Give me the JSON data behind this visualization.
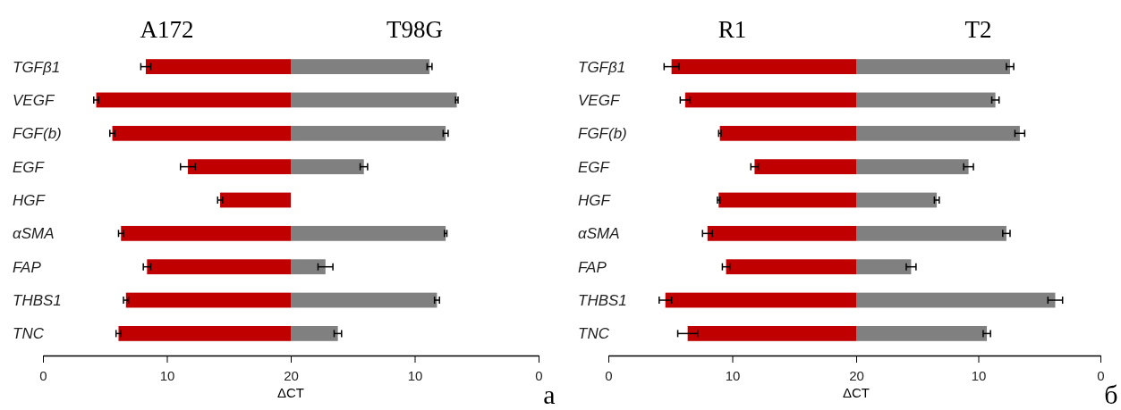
{
  "chart_data": [
    {
      "type": "bar",
      "orientation": "horizontal",
      "title": "A172",
      "xlabel": "ΔCT",
      "categories": [
        "TGFβ1",
        "VEGF",
        "FGF(b)",
        "EGF",
        "HGF",
        "αSMA",
        "FAP",
        "THBS1",
        "TNC"
      ],
      "color": "#c00000",
      "base": [
        20,
        20,
        20,
        20,
        20,
        20,
        20,
        20,
        20
      ],
      "values": [
        -11.7,
        -15.7,
        -14.4,
        -8.3,
        -5.7,
        -13.7,
        -11.6,
        -13.3,
        -13.9
      ],
      "errors": [
        0.4,
        0.2,
        0.2,
        0.6,
        0.2,
        0.2,
        0.3,
        0.2,
        0.2
      ],
      "xlim": [
        0,
        20
      ],
      "xticks": [
        0,
        10,
        20
      ]
    },
    {
      "type": "bar",
      "orientation": "horizontal",
      "title": "T98G",
      "categories": [
        null,
        null,
        null,
        null,
        null,
        null,
        null,
        null,
        null
      ],
      "color": "#808080",
      "base": [
        20,
        20,
        20,
        20,
        null,
        20,
        20,
        20,
        20
      ],
      "values": [
        -11.2,
        -13.4,
        -12.5,
        -5.9,
        null,
        -12.5,
        -2.8,
        -11.8,
        -3.8
      ],
      "errors": [
        0.2,
        0.1,
        0.2,
        0.3,
        null,
        0.1,
        0.6,
        0.2,
        0.3
      ],
      "xlim": [
        20,
        0
      ],
      "xticks": [
        {
          "value": 20,
          "label": null
        },
        10,
        0
      ],
      "tick_labels": "x",
      "annotations": [
        "а"
      ]
    },
    {
      "type": "bar",
      "orientation": "horizontal",
      "title": "R1",
      "xlabel": "ΔCT",
      "categories": [
        "TGFβ1",
        "VEGF",
        "FGF(b)",
        "EGF",
        "HGF",
        "αSMA",
        "FAP",
        "THBS1",
        "TNC"
      ],
      "color": "#c00000",
      "base": [
        20,
        20,
        20,
        20,
        20,
        20,
        20,
        20,
        20
      ],
      "values": [
        -14.9,
        -13.8,
        -11.0,
        -8.2,
        -11.1,
        -12.0,
        -10.5,
        -15.4,
        -13.6
      ],
      "errors": [
        0.6,
        0.4,
        0.1,
        0.3,
        0.1,
        0.4,
        0.3,
        0.5,
        0.8
      ],
      "xlim": [
        0,
        20
      ],
      "xticks": [
        0,
        10,
        20
      ]
    },
    {
      "type": "bar",
      "orientation": "horizontal",
      "title": "T2",
      "categories": [
        null,
        null,
        null,
        null,
        null,
        null,
        null,
        null,
        null
      ],
      "color": "#808080",
      "base": [
        20,
        20,
        20,
        20,
        20,
        20,
        20,
        20,
        20
      ],
      "values": [
        -12.6,
        -11.4,
        -13.4,
        -9.2,
        -6.6,
        -12.3,
        -4.5,
        -16.3,
        -10.7
      ],
      "errors": [
        0.3,
        0.3,
        0.4,
        0.4,
        0.2,
        0.3,
        0.4,
        0.6,
        0.3
      ],
      "xlim": [
        20,
        0
      ],
      "xticks": [
        {
          "value": 20,
          "label": null
        },
        10,
        0
      ],
      "tick_labels": "x",
      "annotations": [
        "б"
      ]
    }
  ]
}
